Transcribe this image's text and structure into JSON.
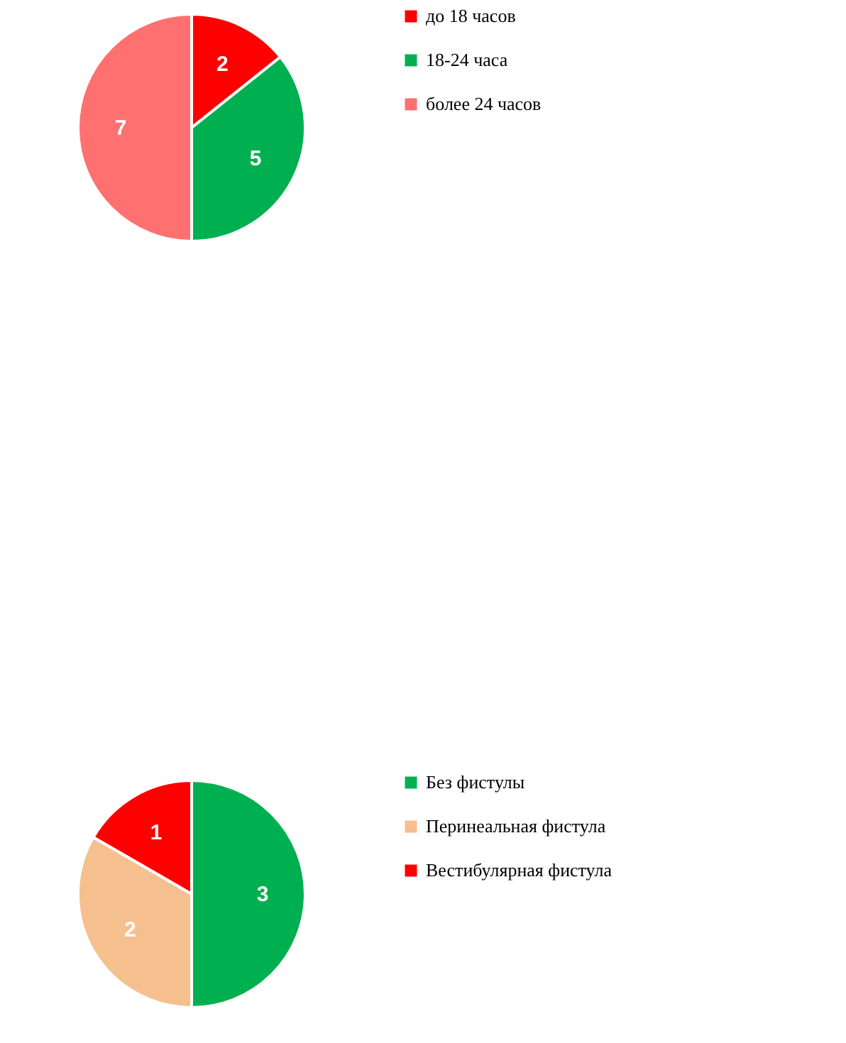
{
  "chart_data": [
    {
      "type": "pie",
      "categories": [
        "до 18 часов",
        "18-24 часа",
        "более 24 часов"
      ],
      "values": [
        2,
        5,
        7
      ],
      "colors": [
        "#ff0000",
        "#00b050",
        "#ff7070"
      ],
      "data_labels": true,
      "legend": "right"
    },
    {
      "type": "pie",
      "categories": [
        "Без фистулы",
        "Перинеальная фистула",
        "Вестибулярная фистула"
      ],
      "values": [
        3,
        2,
        1
      ],
      "colors": [
        "#00b050",
        "#f5bf8e",
        "#ff0000"
      ],
      "data_labels": true,
      "legend": "right"
    }
  ]
}
